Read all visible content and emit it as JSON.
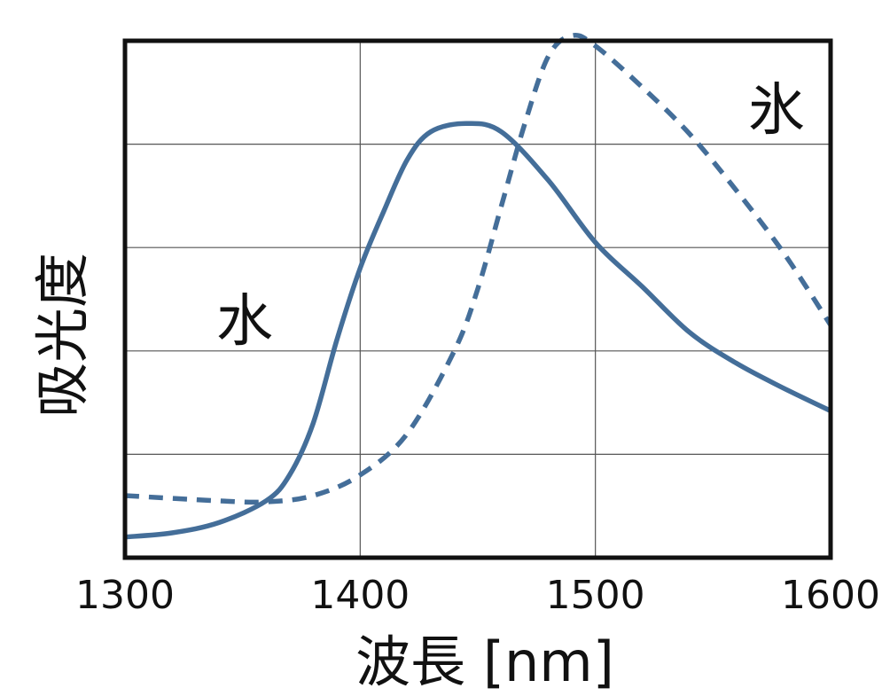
{
  "chart_data": {
    "type": "line",
    "title": "",
    "xlabel": "波長 [nm]",
    "ylabel": "吸光度",
    "xlim": [
      1300,
      1600
    ],
    "ylim": [
      0,
      5
    ],
    "x_ticks": [
      "1300",
      "1400",
      "1500",
      "1600"
    ],
    "grid": true,
    "y_tick_labels_shown": false,
    "line_color": "#446e99",
    "series": [
      {
        "name": "水",
        "style": "solid",
        "points": [
          [
            1300,
            0.2
          ],
          [
            1320,
            0.24
          ],
          [
            1340,
            0.34
          ],
          [
            1360,
            0.55
          ],
          [
            1370,
            0.8
          ],
          [
            1380,
            1.3
          ],
          [
            1390,
            2.1
          ],
          [
            1400,
            2.8
          ],
          [
            1410,
            3.35
          ],
          [
            1420,
            3.85
          ],
          [
            1430,
            4.12
          ],
          [
            1445,
            4.2
          ],
          [
            1460,
            4.12
          ],
          [
            1480,
            3.65
          ],
          [
            1500,
            3.05
          ],
          [
            1520,
            2.62
          ],
          [
            1540,
            2.18
          ],
          [
            1560,
            1.88
          ],
          [
            1580,
            1.64
          ],
          [
            1600,
            1.42
          ]
        ]
      },
      {
        "name": "氷",
        "style": "dashed",
        "points": [
          [
            1300,
            0.6
          ],
          [
            1340,
            0.55
          ],
          [
            1360,
            0.54
          ],
          [
            1380,
            0.6
          ],
          [
            1400,
            0.8
          ],
          [
            1420,
            1.2
          ],
          [
            1440,
            2.0
          ],
          [
            1450,
            2.6
          ],
          [
            1460,
            3.4
          ],
          [
            1470,
            4.2
          ],
          [
            1480,
            4.85
          ],
          [
            1490,
            5.05
          ],
          [
            1500,
            4.95
          ],
          [
            1520,
            4.55
          ],
          [
            1540,
            4.1
          ],
          [
            1560,
            3.55
          ],
          [
            1580,
            2.95
          ],
          [
            1600,
            2.25
          ]
        ]
      }
    ]
  }
}
